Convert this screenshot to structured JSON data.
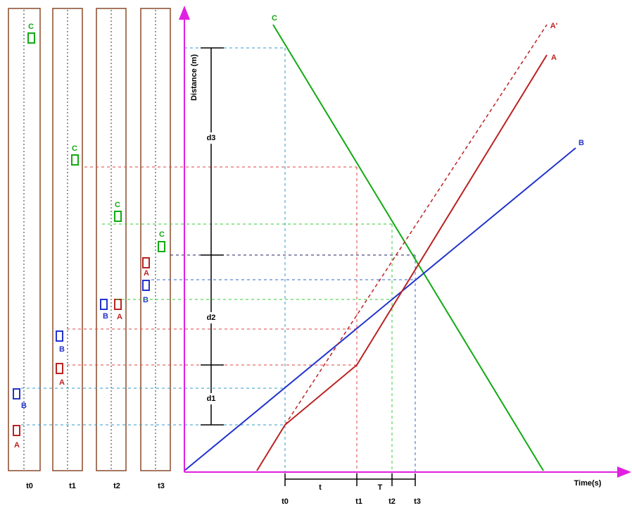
{
  "lanes": [
    {
      "label": "t0",
      "cars": [
        "C",
        "B",
        "A"
      ]
    },
    {
      "label": "t1",
      "cars": [
        "C",
        "B",
        "A"
      ]
    },
    {
      "label": "t2",
      "cars": [
        "C",
        "B",
        "A"
      ]
    },
    {
      "label": "t3",
      "cars": [
        "C",
        "A",
        "B"
      ]
    }
  ],
  "axes": {
    "y": "Distance (m)",
    "x": "Time(s)"
  },
  "lines": [
    "C",
    "A'",
    "A",
    "B"
  ],
  "distances": [
    "d1",
    "d2",
    "d3"
  ],
  "time_marks": [
    "t0",
    "t1",
    "t2",
    "t3"
  ],
  "intervals": [
    "t",
    "T"
  ]
}
